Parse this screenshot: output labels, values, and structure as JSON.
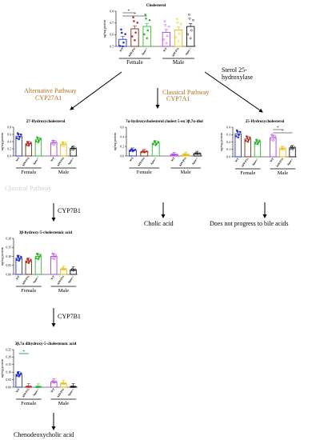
{
  "colors": {
    "wt": "#1f2fd6",
    "app": "#c4302b",
    "app_border": "#7a2b17",
    "gfp": "#2fb52f",
    "wt_m": "#b040e0",
    "app_m": "#e6b800",
    "gfp_m": "#111111",
    "pathway_alt": "#b06a1a",
    "pathway_classic": "#b06a1a",
    "sig_line": "#1f9f8a"
  },
  "categories": [
    "WT",
    "APP/PS1",
    "Apoe-/-"
  ],
  "group_labels": [
    "Female",
    "Male"
  ],
  "pathways": {
    "alternative": "Alternative Pathway",
    "alternative_enzyme": "CYP27A1",
    "classical": "Classical Pathway",
    "classical_enzyme": "CYP7A1",
    "sterol_25": "Sterol 25-\nhydroxylase",
    "cyp7b1_1": "CYP7B1",
    "cyp7b1_2": "CYP7B1"
  },
  "endpoints": {
    "cholic": "Cholic acid",
    "no_bile": "Does not progress to bile acids",
    "cheno": "Chenodeoxycholic acid"
  },
  "faded_text": "Classical Pathway",
  "charts": [
    {
      "title": "Cholesterol",
      "ylabel": "ng/mg protein",
      "ticks": [
        "0.5",
        "0.6",
        "0.7",
        "0.8"
      ],
      "sig": [
        "*",
        "*"
      ]
    },
    {
      "title": "27-Hydroxycholesterol",
      "ylabel": "ng/mg protein",
      "ticks": [
        "0.0",
        "0.2",
        "0.4",
        "0.6",
        "0.8"
      ],
      "sig": []
    },
    {
      "title": "7α-hydroxycholesterol cholest 5-en 3β,7α-diol",
      "ylabel": "ng/mg protein",
      "ticks": [
        "0.0",
        "0.2",
        "0.4",
        "0.6"
      ],
      "sig": []
    },
    {
      "title": "25-Hydroxycholesterol",
      "ylabel": "ng/mg protein",
      "ticks": [
        "0.0",
        "0.1",
        "0.2",
        "0.3",
        "0.4"
      ],
      "sig": [
        "*",
        "*"
      ]
    },
    {
      "title": "3β-hydroxy-5-cholestenoic acid",
      "ylabel": "ng/mg protein",
      "ticks": [
        "0.00",
        "0.05",
        "0.10",
        "0.15",
        "0.20"
      ],
      "sig": []
    },
    {
      "title": "3β,7α dihydroxy-5-cholestenoic acid",
      "ylabel": "ng/mg protein",
      "ticks": [
        "0.00",
        "0.05",
        "0.10",
        "0.15",
        "0.20",
        "0.25"
      ],
      "sig": [
        "*"
      ]
    }
  ],
  "chart_data": [
    {
      "type": "bar",
      "title": "Cholesterol",
      "ylim": [
        0.5,
        0.8
      ],
      "categories": [
        "WT",
        "APP/PS1",
        "Apoe-/-",
        "WT",
        "APP/PS1",
        "Apoe-/-"
      ],
      "values": [
        0.56,
        0.65,
        0.67,
        0.62,
        0.64,
        0.67
      ]
    },
    {
      "type": "bar",
      "title": "27-Hydroxycholesterol",
      "ylim": [
        0.0,
        0.8
      ],
      "categories": [
        "WT",
        "APP/PS1",
        "Apoe-/-",
        "WT",
        "APP/PS1",
        "Apoe-/-"
      ],
      "values": [
        0.55,
        0.34,
        0.45,
        0.37,
        0.33,
        0.21
      ]
    },
    {
      "type": "bar",
      "title": "7α-hydroxycholesterol cholest 5-en 3β,7α-diol",
      "ylim": [
        0.0,
        0.6
      ],
      "categories": [
        "WT",
        "APP/PS1",
        "Apoe-/-",
        "WT",
        "APP/PS1",
        "Apoe-/-"
      ],
      "values": [
        0.12,
        0.09,
        0.27,
        0.03,
        0.03,
        0.05
      ]
    },
    {
      "type": "bar",
      "title": "25-Hydroxycholesterol",
      "ylim": [
        0.0,
        0.4
      ],
      "categories": [
        "WT",
        "APP/PS1",
        "Apoe-/-",
        "WT",
        "APP/PS1",
        "Apoe-/-"
      ],
      "values": [
        0.31,
        0.24,
        0.2,
        0.26,
        0.11,
        0.12
      ]
    },
    {
      "type": "bar",
      "title": "3β-hydroxy-5-cholestenoic acid",
      "ylim": [
        0.0,
        0.2
      ],
      "categories": [
        "WT",
        "APP/PS1",
        "Apoe-/-",
        "WT",
        "APP/PS1",
        "Apoe-/-"
      ],
      "values": [
        0.09,
        0.075,
        0.1,
        0.1,
        0.03,
        0.025
      ]
    },
    {
      "type": "bar",
      "title": "3β,7α dihydroxy-5-cholestenoic acid",
      "ylim": [
        0.0,
        0.25
      ],
      "categories": [
        "WT",
        "APP/PS1",
        "Apoe-/-",
        "WT",
        "APP/PS1",
        "Apoe-/-"
      ],
      "values": [
        0.085,
        0.003,
        0.002,
        0.035,
        0.025,
        0.003
      ]
    }
  ]
}
